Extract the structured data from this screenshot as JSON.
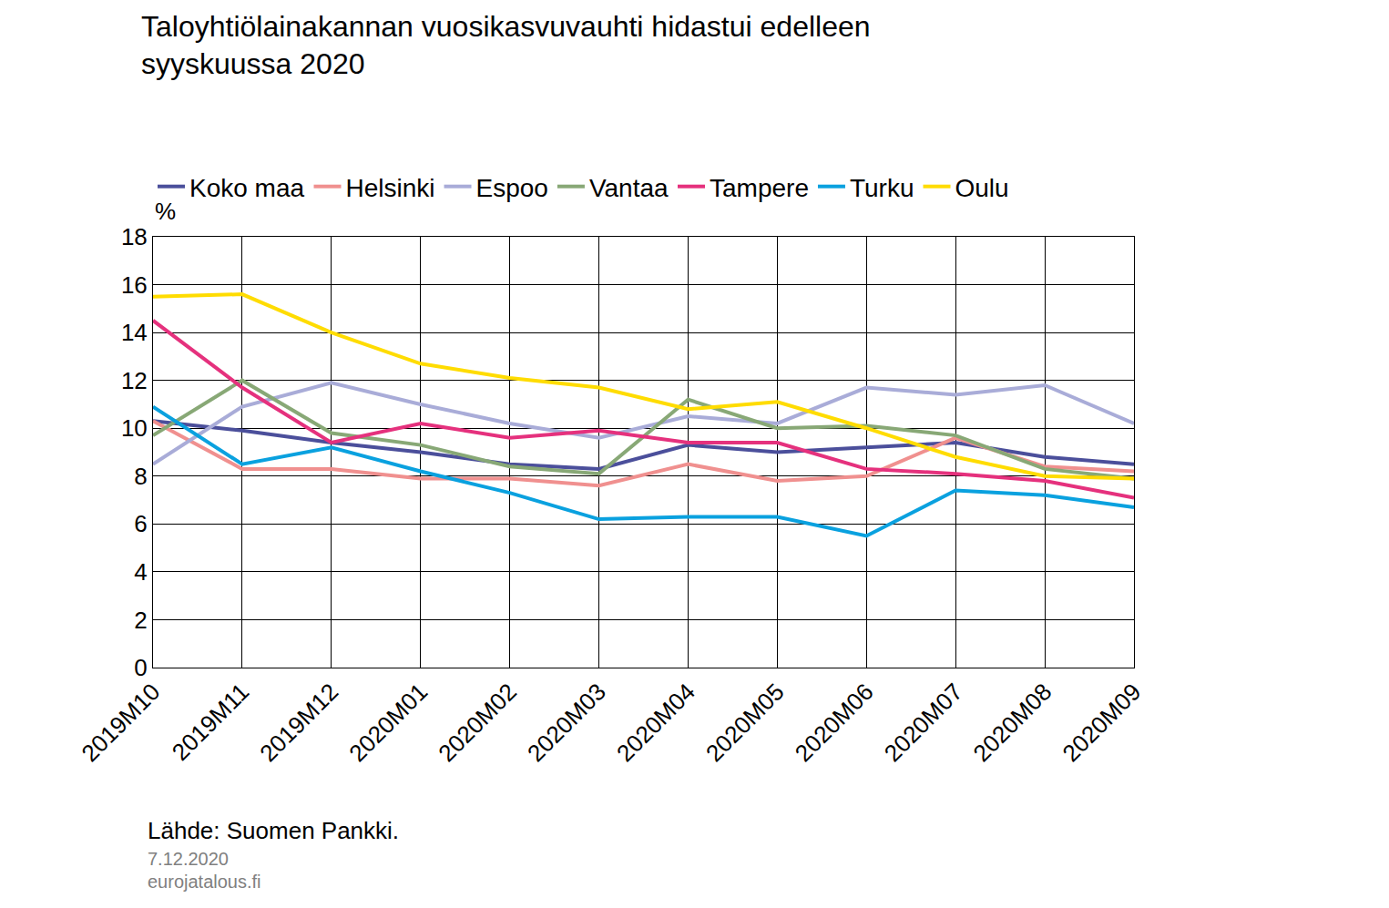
{
  "chart_data": {
    "type": "line",
    "title": "Taloyhtiölainakannan vuosikasvuvauhti hidastui edelleen\nsyyskuussa 2020",
    "y_label": "%",
    "annotations": [
      "Lähde: Suomen Pankki.",
      "7.12.2020",
      "eurojatalous.fi"
    ],
    "categories": [
      "2019M10",
      "2019M11",
      "2019M12",
      "2020M01",
      "2020M02",
      "2020M03",
      "2020M04",
      "2020M05",
      "2020M06",
      "2020M07",
      "2020M08",
      "2020M09"
    ],
    "series": [
      {
        "name": "Koko maa",
        "color": "#4b4f9b",
        "values": [
          10.3,
          9.9,
          9.4,
          9.0,
          8.5,
          8.3,
          9.3,
          9.0,
          9.2,
          9.4,
          8.8,
          8.5
        ]
      },
      {
        "name": "Helsinki",
        "color": "#f0908f",
        "values": [
          10.3,
          8.3,
          8.3,
          7.9,
          7.9,
          7.6,
          8.5,
          7.8,
          8.0,
          9.6,
          8.4,
          8.2
        ]
      },
      {
        "name": "Espoo",
        "color": "#a9acd8",
        "values": [
          8.5,
          10.9,
          11.9,
          11.0,
          10.2,
          9.6,
          10.5,
          10.2,
          11.7,
          11.4,
          11.8,
          10.2
        ]
      },
      {
        "name": "Vantaa",
        "color": "#88a876",
        "values": [
          9.7,
          12.0,
          9.8,
          9.3,
          8.4,
          8.1,
          11.2,
          10.0,
          10.1,
          9.7,
          8.3,
          7.9
        ]
      },
      {
        "name": "Tampere",
        "color": "#e5317d",
        "values": [
          14.5,
          11.7,
          9.4,
          10.2,
          9.6,
          9.9,
          9.4,
          9.4,
          8.3,
          8.1,
          7.8,
          7.1
        ]
      },
      {
        "name": "Turku",
        "color": "#0aa1df",
        "values": [
          10.9,
          8.5,
          9.2,
          8.2,
          7.3,
          6.2,
          6.3,
          6.3,
          5.5,
          7.4,
          7.2,
          6.7
        ]
      },
      {
        "name": "Oulu",
        "color": "#ffdc00",
        "values": [
          15.5,
          15.6,
          14.0,
          12.7,
          12.1,
          11.7,
          10.8,
          11.1,
          10.0,
          8.8,
          8.0,
          7.9
        ]
      }
    ],
    "ylim": [
      0,
      18
    ],
    "yticks": [
      0,
      2,
      4,
      6,
      8,
      10,
      12,
      14,
      16,
      18
    ],
    "grid": true,
    "legend": "top"
  }
}
